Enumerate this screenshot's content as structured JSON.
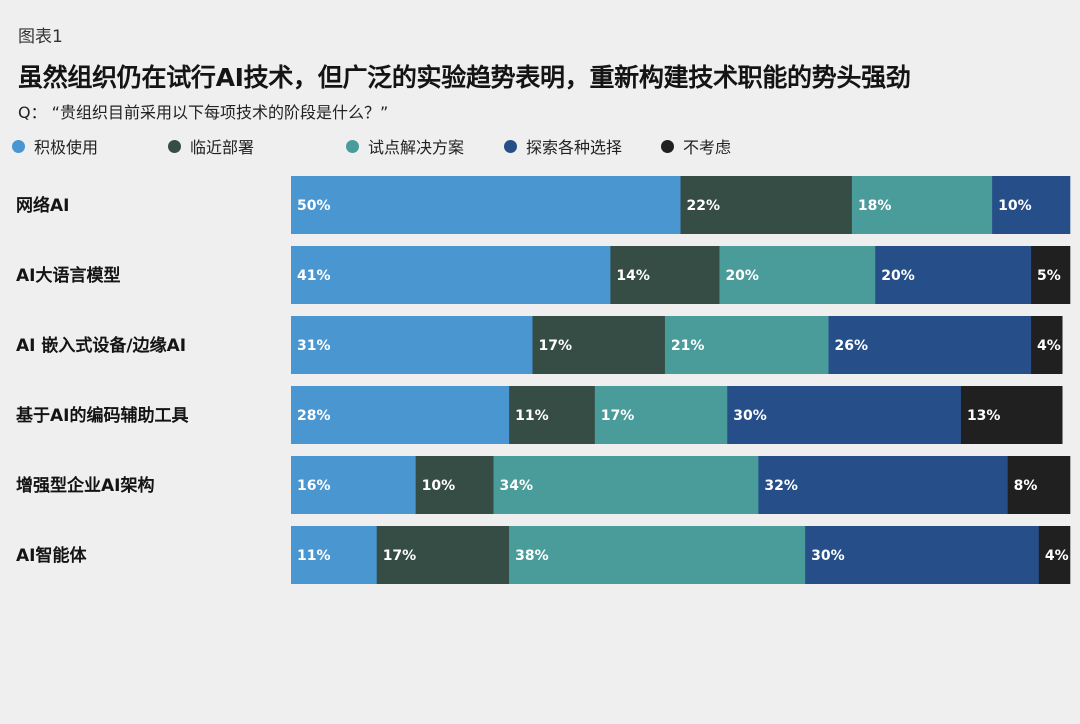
{
  "figure_label": "图表1",
  "chart_data": {
    "type": "bar",
    "orientation": "horizontal",
    "stacked": true,
    "title": "虽然组织仍在试行AI技术，但广泛的实验趋势表明，重新构建技术职能的势头强劲",
    "subtitle": "Q：   “贵组织目前采用以下每项技术的阶段是什么？”",
    "xlim": [
      0,
      100
    ],
    "value_suffix": "%",
    "categories": [
      "网络AI",
      "AI大语言模型",
      "AI 嵌入式设备/边缘AI",
      "基于AI的编码辅助工具",
      "增强型企业AI架构",
      "AI智能体"
    ],
    "series": [
      {
        "name": "积极使用",
        "color": "#4996d1",
        "values": [
          50,
          41,
          31,
          28,
          16,
          11
        ]
      },
      {
        "name": "临近部署",
        "color": "#354d45",
        "values": [
          22,
          14,
          17,
          11,
          10,
          17
        ]
      },
      {
        "name": "试点解决方案",
        "color": "#4a9c9b",
        "values": [
          18,
          20,
          21,
          17,
          34,
          38
        ]
      },
      {
        "name": "探索各种选择",
        "color": "#264f89",
        "values": [
          10,
          20,
          26,
          30,
          32,
          30
        ]
      },
      {
        "name": "不考虑",
        "color": "#202020",
        "values": [
          0,
          5,
          4,
          13,
          8,
          4
        ]
      }
    ]
  }
}
